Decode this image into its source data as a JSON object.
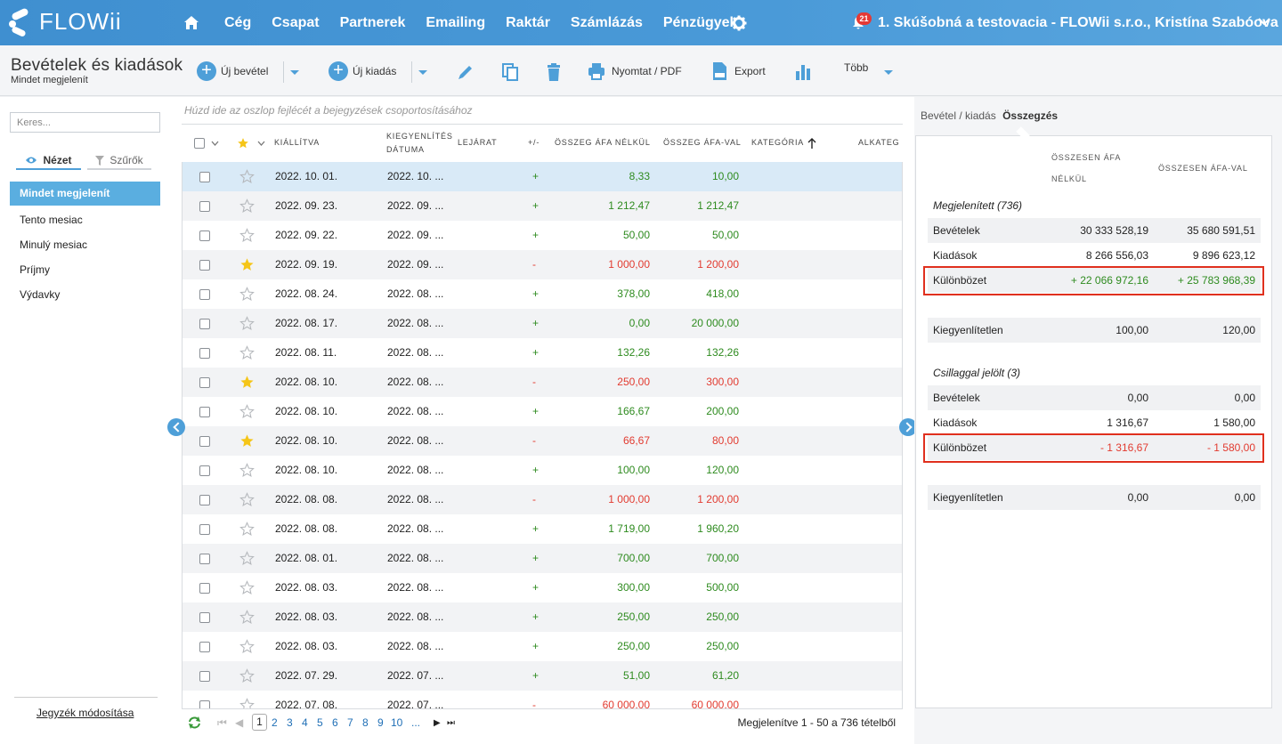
{
  "app": {
    "logo_text": "FLOWii"
  },
  "nav": {
    "items": [
      "Cég",
      "Csapat",
      "Partnerek",
      "Emailing",
      "Raktár",
      "Számlázás",
      "Pénzügyek"
    ],
    "notifications": "21",
    "user": "1. Skúšobná a testovacia - FLOWii s.r.o., Kristína Szabóova"
  },
  "toolbar": {
    "title": "Bevételek és kiadások",
    "subtitle": "Mindet megjelenít",
    "new_income": "Új bevétel",
    "new_expense": "Új kiadás",
    "print": "Nyomtat / PDF",
    "export": "Export",
    "more": "Több"
  },
  "sidebar": {
    "search_placeholder": "Keres...",
    "tab_view": "Nézet",
    "tab_filters": "Szűrők",
    "items": [
      "Mindet megjelenít",
      "Tento mesiac",
      "Minulý mesiac",
      "Príjmy",
      "Výdavky"
    ],
    "footer_link": "Jegyzék módosítása"
  },
  "grid": {
    "group_hint": "Húzd ide az oszlop fejlécét a bejegyzések csoportosításához",
    "headers": {
      "issued": "Kiállítva",
      "settled": "Kiegyenlítés dátuma",
      "due": "Lejárat",
      "sign": "+/-",
      "net": "Összeg áfa nélkül",
      "gross": "Összeg áfa-val",
      "category": "Kategória",
      "subcategory": "Alkateg"
    },
    "rows": [
      {
        "star": false,
        "issued": "2022. 10. 01.",
        "settled": "2022. 10. ...",
        "sign": "+",
        "net": "8,33",
        "gross": "10,00",
        "selected": true
      },
      {
        "star": false,
        "issued": "2022. 09. 23.",
        "settled": "2022. 09. ...",
        "sign": "+",
        "net": "1 212,47",
        "gross": "1 212,47"
      },
      {
        "star": false,
        "issued": "2022. 09. 22.",
        "settled": "2022. 09. ...",
        "sign": "+",
        "net": "50,00",
        "gross": "50,00"
      },
      {
        "star": true,
        "issued": "2022. 09. 19.",
        "settled": "2022. 09. ...",
        "sign": "-",
        "net": "1 000,00",
        "gross": "1 200,00"
      },
      {
        "star": false,
        "issued": "2022. 08. 24.",
        "settled": "2022. 08. ...",
        "sign": "+",
        "net": "378,00",
        "gross": "418,00"
      },
      {
        "star": false,
        "issued": "2022. 08. 17.",
        "settled": "2022. 08. ...",
        "sign": "+",
        "net": "0,00",
        "gross": "20 000,00"
      },
      {
        "star": false,
        "issued": "2022. 08. 11.",
        "settled": "2022. 08. ...",
        "sign": "+",
        "net": "132,26",
        "gross": "132,26"
      },
      {
        "star": true,
        "issued": "2022. 08. 10.",
        "settled": "2022. 08. ...",
        "sign": "-",
        "net": "250,00",
        "gross": "300,00"
      },
      {
        "star": false,
        "issued": "2022. 08. 10.",
        "settled": "2022. 08. ...",
        "sign": "+",
        "net": "166,67",
        "gross": "200,00"
      },
      {
        "star": true,
        "issued": "2022. 08. 10.",
        "settled": "2022. 08. ...",
        "sign": "-",
        "net": "66,67",
        "gross": "80,00"
      },
      {
        "star": false,
        "issued": "2022. 08. 10.",
        "settled": "2022. 08. ...",
        "sign": "+",
        "net": "100,00",
        "gross": "120,00"
      },
      {
        "star": false,
        "issued": "2022. 08. 08.",
        "settled": "2022. 08. ...",
        "sign": "-",
        "net": "1 000,00",
        "gross": "1 200,00"
      },
      {
        "star": false,
        "issued": "2022. 08. 08.",
        "settled": "2022. 08. ...",
        "sign": "+",
        "net": "1 719,00",
        "gross": "1 960,20"
      },
      {
        "star": false,
        "issued": "2022. 08. 01.",
        "settled": "2022. 08. ...",
        "sign": "+",
        "net": "700,00",
        "gross": "700,00"
      },
      {
        "star": false,
        "issued": "2022. 08. 03.",
        "settled": "2022. 08. ...",
        "sign": "+",
        "net": "300,00",
        "gross": "500,00"
      },
      {
        "star": false,
        "issued": "2022. 08. 03.",
        "settled": "2022. 08. ...",
        "sign": "+",
        "net": "250,00",
        "gross": "250,00"
      },
      {
        "star": false,
        "issued": "2022. 08. 03.",
        "settled": "2022. 08. ...",
        "sign": "+",
        "net": "250,00",
        "gross": "250,00"
      },
      {
        "star": false,
        "issued": "2022. 07. 29.",
        "settled": "2022. 07. ...",
        "sign": "+",
        "net": "51,00",
        "gross": "61,20"
      },
      {
        "star": false,
        "issued": "2022. 07. 08.",
        "settled": "2022. 07. ...",
        "sign": "-",
        "net": "60 000,00",
        "gross": "60 000,00"
      }
    ],
    "pager": {
      "current": "1",
      "pages": [
        "2",
        "3",
        "4",
        "5",
        "6",
        "7",
        "8",
        "9",
        "10",
        "..."
      ],
      "info": "Megjelenítve 1 - 50 a 736 tételből"
    }
  },
  "summary": {
    "tab_label": "Bevétel / kiadás",
    "tab_active": "Összegzés",
    "col1": "Összesen áfa nélkül",
    "col2": "Összesen áfa-val",
    "shown_title": "Megjelenített (736)",
    "shown": {
      "income": {
        "label": "Bevételek",
        "v1": "30 333 528,19",
        "v2": "35 680 591,51"
      },
      "expense": {
        "label": "Kiadások",
        "v1": "8 266 556,03",
        "v2": "9 896 623,12"
      },
      "diff": {
        "label": "Különbözet",
        "v1": "+ 22 066 972,16",
        "v2": "+ 25 783 968,39"
      },
      "unsettled": {
        "label": "Kiegyenlítetlen",
        "v1": "100,00",
        "v2": "120,00"
      }
    },
    "starred_title": "Csillaggal jelölt (3)",
    "starred": {
      "income": {
        "label": "Bevételek",
        "v1": "0,00",
        "v2": "0,00"
      },
      "expense": {
        "label": "Kiadások",
        "v1": "1 316,67",
        "v2": "1 580,00"
      },
      "diff": {
        "label": "Különbözet",
        "v1": "- 1 316,67",
        "v2": "- 1 580,00"
      },
      "unsettled": {
        "label": "Kiegyenlítetlen",
        "v1": "0,00",
        "v2": "0,00"
      }
    }
  },
  "colors": {
    "accent": "#4e9fd8",
    "positive": "#2e8b1f",
    "negative": "#e23b30",
    "star": "#f5c518"
  }
}
